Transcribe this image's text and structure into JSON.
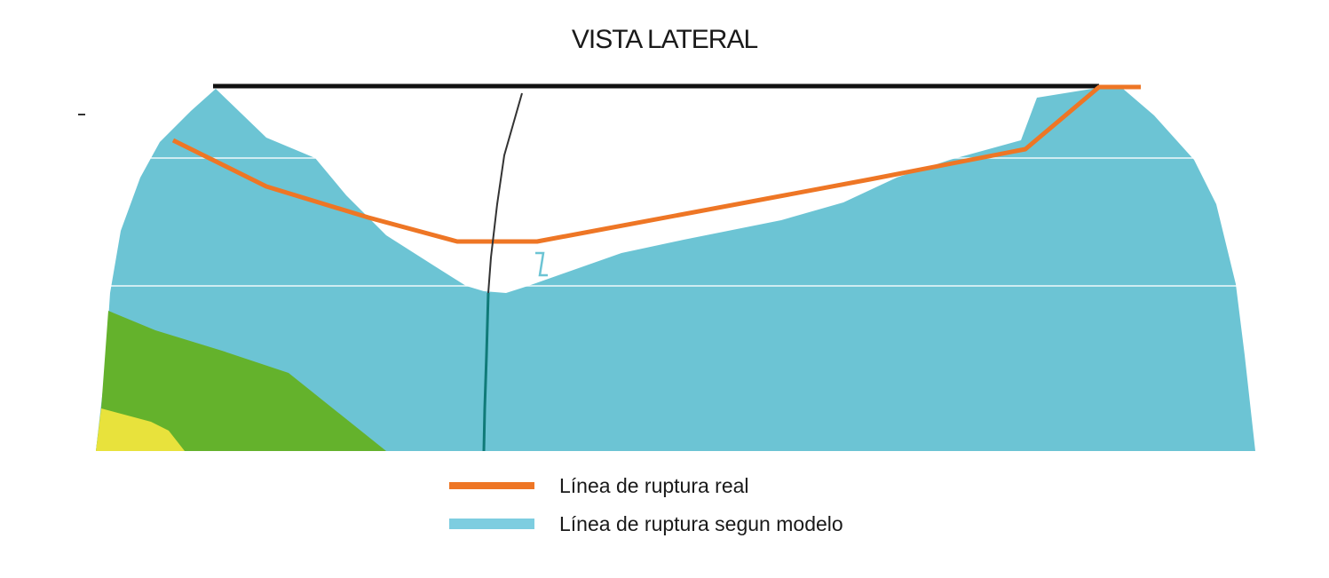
{
  "title": "VISTA LATERAL",
  "colors": {
    "model_cyan": "#6cc4d4",
    "green": "#64b22c",
    "yellow": "#e8e23c",
    "real_orange": "#ee7625",
    "top_line": "#111111",
    "fault_line": "#333333",
    "fault_line_lower": "#0f7a78"
  },
  "legend": [
    {
      "label": "Línea de ruptura real",
      "color": "#ee7625"
    },
    {
      "label": "Línea de ruptura segun modelo",
      "color": "#7dcde0"
    }
  ]
}
